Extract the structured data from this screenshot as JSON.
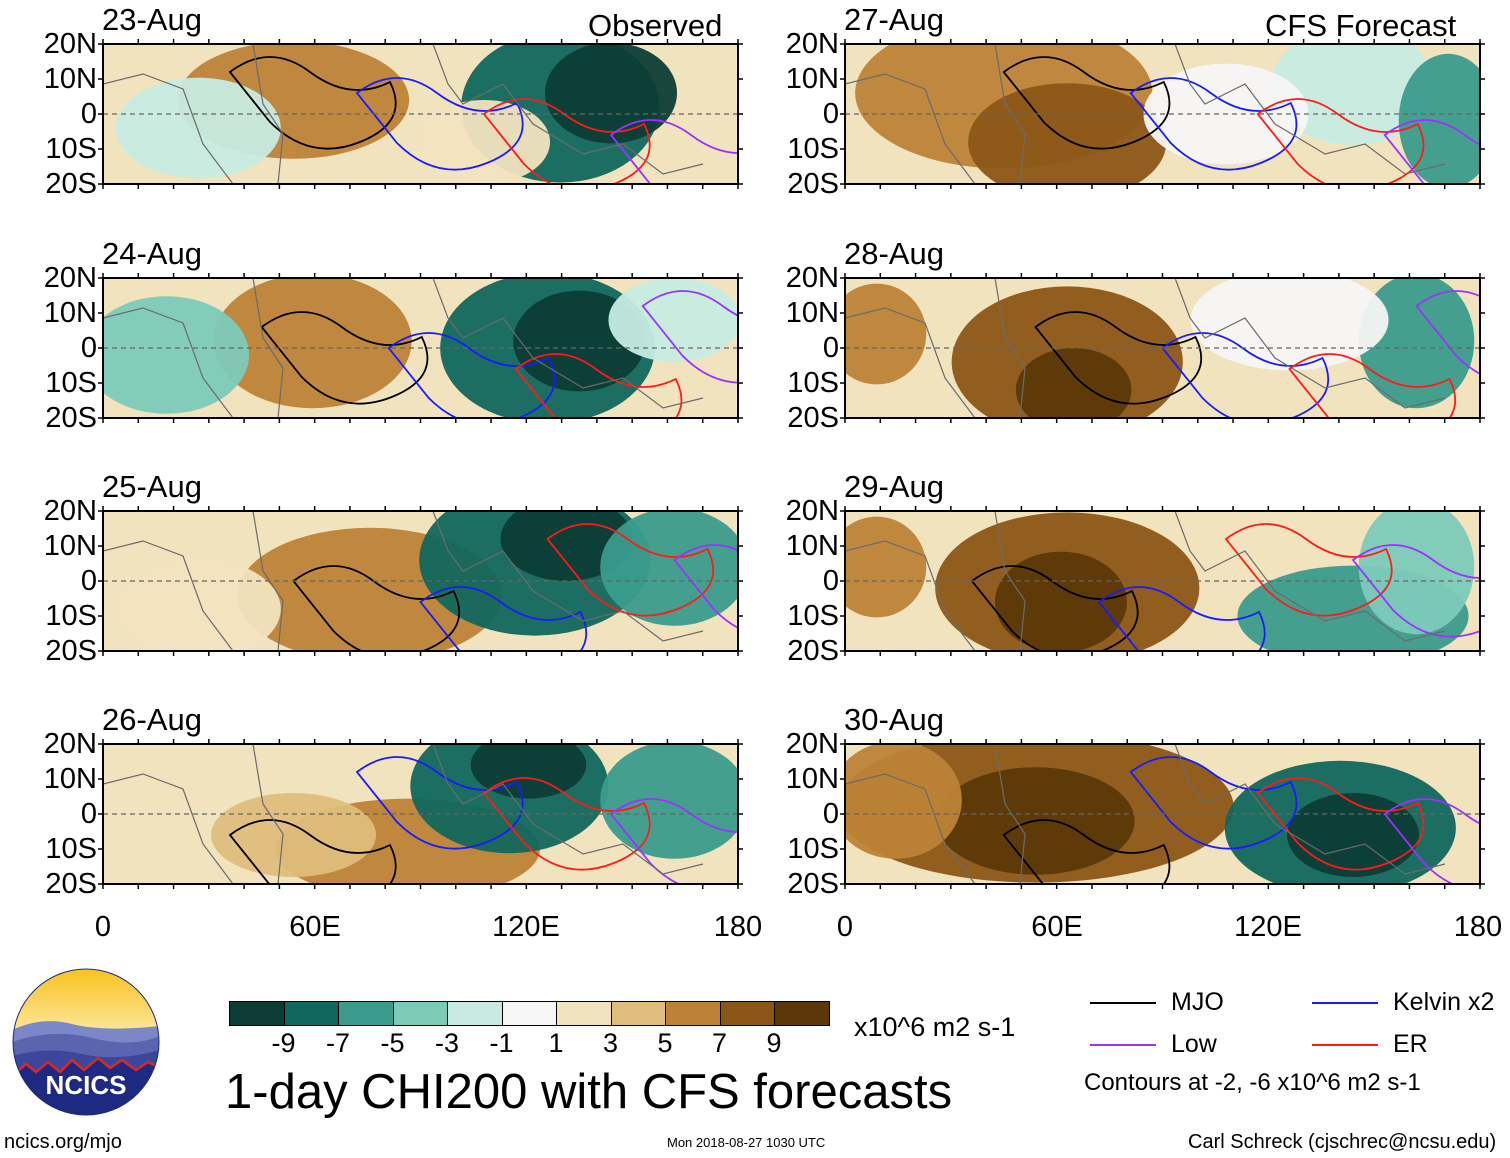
{
  "title": "1-day CHI200 with CFS forecasts",
  "observed_label": "Observed",
  "forecast_label": "CFS Forecast",
  "units": "x10^6 m2 s-1",
  "panels": [
    {
      "date": "23-Aug",
      "column": "observed",
      "row": 0
    },
    {
      "date": "24-Aug",
      "column": "observed",
      "row": 1
    },
    {
      "date": "25-Aug",
      "column": "observed",
      "row": 2
    },
    {
      "date": "26-Aug",
      "column": "observed",
      "row": 3
    },
    {
      "date": "27-Aug",
      "column": "forecast",
      "row": 0
    },
    {
      "date": "28-Aug",
      "column": "forecast",
      "row": 1
    },
    {
      "date": "29-Aug",
      "column": "forecast",
      "row": 2
    },
    {
      "date": "30-Aug",
      "column": "forecast",
      "row": 3
    }
  ],
  "axes": {
    "lat_labels": [
      "20N",
      "10N",
      "0",
      "10S",
      "20S"
    ],
    "lon_labels": [
      "0",
      "60E",
      "120E",
      "180"
    ],
    "lat_range": [
      -20,
      20
    ],
    "lon_range": [
      0,
      180
    ]
  },
  "colorbar": {
    "labels": [
      "-9",
      "-7",
      "-5",
      "-3",
      "-1",
      "1",
      "3",
      "5",
      "7",
      "9"
    ],
    "colors": [
      "#0c3c35",
      "#11675d",
      "#3b9b8c",
      "#7dcab9",
      "#c7ebe2",
      "#f6f6f6",
      "#f2e3bf",
      "#dfbd7c",
      "#bd8237",
      "#8c5617",
      "#5c3808"
    ]
  },
  "legend": {
    "items": [
      {
        "label": "MJO",
        "color": "#000000"
      },
      {
        "label": "Kelvin x2",
        "color": "#1a1aff"
      },
      {
        "label": "Low",
        "color": "#9933ff"
      },
      {
        "label": "ER",
        "color": "#ff1a1a"
      }
    ],
    "contours_note": "Contours at -2, -6 x10^6 m2 s-1"
  },
  "logo": {
    "text": "NCICS"
  },
  "footer": {
    "url": "ncics.org/mjo",
    "timestamp": "Mon 2018-08-27 1030 UTC",
    "credit": "Carl Schreck (cjschrec@ncsu.edu)"
  }
}
